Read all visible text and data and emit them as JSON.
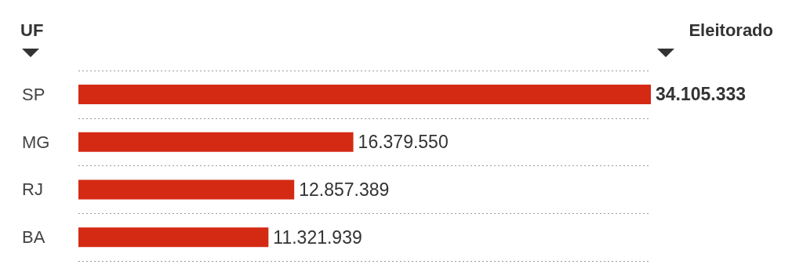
{
  "chart_data": {
    "type": "bar",
    "orientation": "horizontal",
    "ylabel": "UF",
    "xlabel": "Eleitorado",
    "categories": [
      "SP",
      "MG",
      "RJ",
      "BA"
    ],
    "values": [
      34105333,
      16379550,
      12857389,
      11321939
    ],
    "value_labels": [
      "34.105.333",
      "16.379.550",
      "12.857.389",
      "11.321.939"
    ],
    "color": "#d42a14",
    "grid": "y"
  }
}
